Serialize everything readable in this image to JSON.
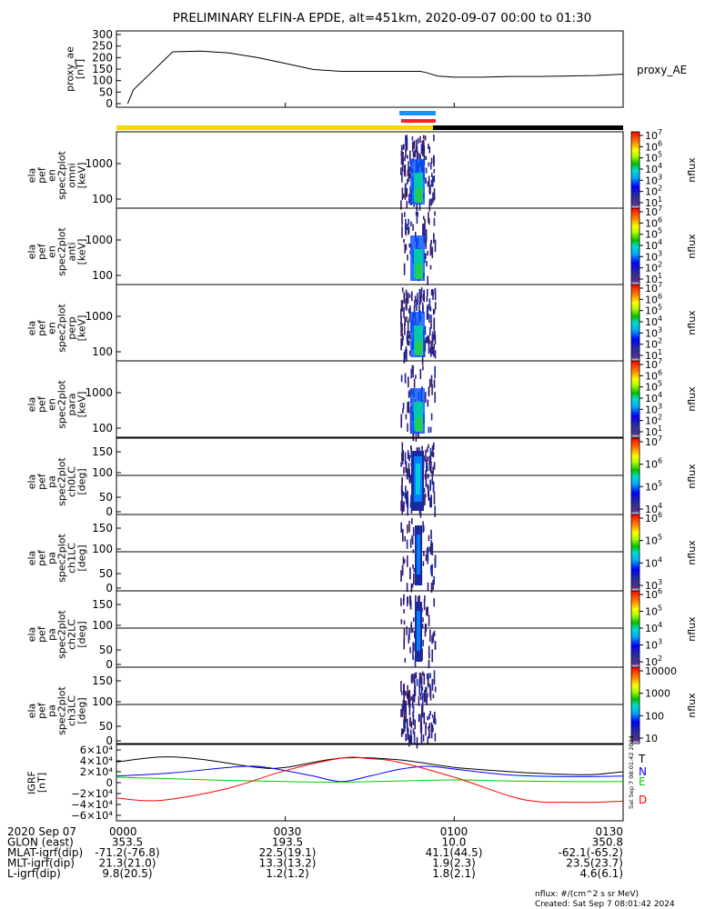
{
  "title": "PRELIMINARY ELFIN-A EPDE, alt=451km, 2020-09-07 00:00 to 01:30",
  "chart_data": [
    {
      "type": "line",
      "id": "proxy_ae",
      "ylabel": [
        "proxy_ae",
        "[nT]"
      ],
      "series_label": "proxy_AE",
      "ylim": [
        0,
        300
      ],
      "yticks": [
        "0",
        "50",
        "100",
        "150",
        "200",
        "250",
        "300"
      ],
      "series": [
        {
          "name": "proxy_AE",
          "color": "#000000",
          "x": [
            2,
            3,
            10,
            15,
            20,
            25,
            30,
            35,
            40,
            45,
            50,
            54,
            55,
            57,
            60,
            65,
            70,
            75,
            80,
            85,
            90
          ],
          "y": [
            0,
            60,
            225,
            228,
            220,
            200,
            175,
            148,
            140,
            140,
            140,
            140,
            135,
            120,
            115,
            115,
            118,
            118,
            120,
            122,
            128
          ]
        }
      ]
    },
    {
      "type": "heatmap",
      "id": "spec-omni",
      "ylabel": [
        "ela",
        "pef",
        "en",
        "spec2plot",
        "omni",
        "[keV]"
      ],
      "yticks": [
        "100",
        "1000"
      ],
      "colorbar": {
        "label": "nflux",
        "ticks": [
          "10",
          "10",
          "10",
          "10",
          "10",
          "10",
          "10"
        ],
        "exps": [
          "1",
          "2",
          "3",
          "4",
          "5",
          "6",
          "7"
        ]
      }
    },
    {
      "type": "heatmap",
      "id": "spec-anti",
      "ylabel": [
        "ela",
        "pef",
        "en",
        "spec2plot",
        "anti",
        "[keV]"
      ],
      "yticks": [
        "100",
        "1000"
      ],
      "colorbar": {
        "label": "nflux",
        "ticks": [
          "10",
          "10",
          "10",
          "10",
          "10",
          "10",
          "10"
        ],
        "exps": [
          "1",
          "2",
          "3",
          "4",
          "5",
          "6",
          "7"
        ]
      }
    },
    {
      "type": "heatmap",
      "id": "spec-perp",
      "ylabel": [
        "ela",
        "pef",
        "en",
        "spec2plot",
        "perp",
        "[keV]"
      ],
      "yticks": [
        "100",
        "1000"
      ],
      "colorbar": {
        "label": "nflux",
        "ticks": [
          "10",
          "10",
          "10",
          "10",
          "10",
          "10",
          "10"
        ],
        "exps": [
          "1",
          "2",
          "3",
          "4",
          "5",
          "6",
          "7"
        ]
      }
    },
    {
      "type": "heatmap",
      "id": "spec-para",
      "ylabel": [
        "ela",
        "pef",
        "en",
        "spec2plot",
        "para",
        "[keV]"
      ],
      "yticks": [
        "100",
        "1000"
      ],
      "colorbar": {
        "label": "nflux",
        "ticks": [
          "10",
          "10",
          "10",
          "10",
          "10",
          "10",
          "10"
        ],
        "exps": [
          "1",
          "2",
          "3",
          "4",
          "5",
          "6",
          "7"
        ]
      }
    },
    {
      "type": "heatmap",
      "id": "pa-ch0",
      "ylabel": [
        "ela",
        "pef",
        "pa",
        "spec2plot",
        "ch0LC",
        "[deg]"
      ],
      "yticks": [
        "0",
        "50",
        "100",
        "150"
      ],
      "colorbar": {
        "label": "nflux",
        "ticks": [
          "10",
          "10",
          "10",
          "10"
        ],
        "exps": [
          "4",
          "5",
          "6",
          "7"
        ]
      }
    },
    {
      "type": "heatmap",
      "id": "pa-ch1",
      "ylabel": [
        "ela",
        "pef",
        "pa",
        "spec2plot",
        "ch1LC",
        "[deg]"
      ],
      "yticks": [
        "0",
        "50",
        "100",
        "150"
      ],
      "colorbar": {
        "label": "nflux",
        "ticks": [
          "10",
          "10",
          "10",
          "10"
        ],
        "exps": [
          "3",
          "4",
          "5",
          "6"
        ]
      }
    },
    {
      "type": "heatmap",
      "id": "pa-ch2",
      "ylabel": [
        "ela",
        "pef",
        "pa",
        "spec2plot",
        "ch2LC",
        "[deg]"
      ],
      "yticks": [
        "0",
        "50",
        "100",
        "150"
      ],
      "colorbar": {
        "label": "nflux",
        "ticks": [
          "10",
          "10",
          "10",
          "10",
          "10"
        ],
        "exps": [
          "2",
          "3",
          "4",
          "5",
          "6"
        ]
      }
    },
    {
      "type": "heatmap",
      "id": "pa-ch3",
      "ylabel": [
        "ela",
        "pef",
        "pa",
        "spec2plot",
        "ch3LC",
        "[deg]"
      ],
      "yticks": [
        "0",
        "50",
        "100",
        "150"
      ],
      "colorbar": {
        "label": "nflux",
        "ticks": [
          "10",
          "100",
          "1000",
          "10000"
        ]
      }
    },
    {
      "type": "line",
      "id": "igrf",
      "ylabel": [
        "IGRF",
        "[nT]"
      ],
      "yticks": [
        "6×10⁴",
        "4×10⁴",
        "2×10⁴",
        "0",
        "−2×10⁴",
        "−4×10⁴",
        "−6×10⁴"
      ],
      "ylim": [
        -60000,
        60000
      ],
      "series": [
        {
          "name": "T",
          "color": "#000000",
          "x": [
            0,
            8,
            15,
            25,
            30,
            40,
            50,
            60,
            70,
            80,
            85,
            90
          ],
          "y": [
            38000,
            47000,
            43000,
            28000,
            28000,
            45000,
            42000,
            28000,
            20000,
            15000,
            15000,
            20000
          ]
        },
        {
          "name": "N",
          "color": "#0000ff",
          "x": [
            0,
            10,
            20,
            25,
            30,
            35,
            40,
            45,
            50,
            55,
            60,
            70,
            80,
            90
          ],
          "y": [
            12000,
            18000,
            28000,
            30000,
            22000,
            12000,
            2000,
            12000,
            24000,
            30000,
            25000,
            14000,
            11000,
            12000
          ]
        },
        {
          "name": "E",
          "color": "#00cc00",
          "x": [
            0,
            10,
            20,
            30,
            40,
            50,
            60,
            70,
            80,
            90
          ],
          "y": [
            10000,
            7000,
            4000,
            2000,
            1000,
            3000,
            5000,
            3000,
            2000,
            2000
          ]
        },
        {
          "name": "D",
          "color": "#ff0000",
          "x": [
            0,
            5,
            10,
            20,
            30,
            40,
            45,
            50,
            60,
            70,
            75,
            80,
            85,
            90
          ],
          "y": [
            -28000,
            -33000,
            -30000,
            -10000,
            22000,
            45000,
            44000,
            38000,
            10000,
            -25000,
            -35000,
            -36000,
            -36000,
            -34000
          ]
        }
      ]
    }
  ],
  "xaxis": {
    "rows": [
      [
        "2020 Sep 07",
        "0000",
        "0030",
        "0100",
        "0130"
      ],
      [
        "GLON (east)",
        "353.5",
        "193.5",
        "10.0",
        "350.8"
      ],
      [
        "MLAT-igrf(dip)",
        "-71.2(-76.8)",
        "22.5(19.1)",
        "41.1(44.5)",
        "-62.1(-65.2)"
      ],
      [
        "MLT-igrf(dip)",
        "21.3(21.0)",
        "13.3(13.2)",
        "1.9(2.3)",
        "23.5(23.7)"
      ],
      [
        "L-igrf(dip)",
        "9.8(20.5)",
        "1.2(1.2)",
        "1.8(2.1)",
        "4.6(6.1)"
      ]
    ]
  },
  "footer": {
    "units": "nflux: #/(cm^2 s sr MeV)",
    "created": "Created: Sat Sep  7 08:01:42 2024",
    "stamp": "Sat Sep  7 08:01:42 2024"
  },
  "colors": {
    "sunlit": "#f5d800",
    "shadow": "#000000",
    "bar_blue": "#1f8fff",
    "bar_red": "#ff2020"
  }
}
